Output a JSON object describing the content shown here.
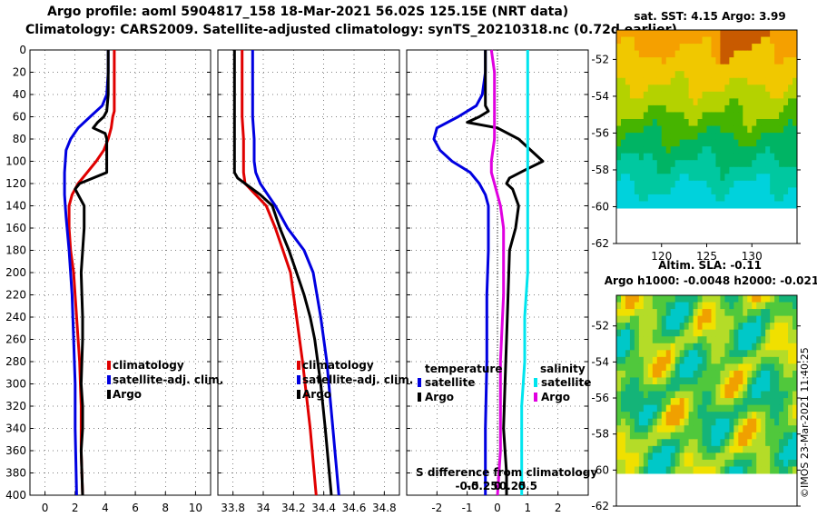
{
  "header": {
    "line1": "Argo profile: aoml 5904817_158 18-Mar-2021 56.02S 125.15E (NRT data)",
    "line2": "Climatology: CARS2009. Satellite-adjusted climatology: synTS_20210318.nc (0.72d earlier)"
  },
  "colors": {
    "climatology": "#e00000",
    "satellite": "#0000e0",
    "argo": "#000000",
    "sat_salinity": "#00e5ee",
    "argo_salinity": "#e000e0"
  },
  "chart_data": [
    {
      "type": "line",
      "panel": "temperature",
      "xlim": [
        -1,
        11
      ],
      "ylim": [
        400,
        0
      ],
      "xticks": [
        "0",
        "2",
        "4",
        "6",
        "8",
        "10"
      ],
      "yticks": [
        "0",
        "20",
        "40",
        "60",
        "80",
        "100",
        "120",
        "140",
        "160",
        "180",
        "200",
        "220",
        "240",
        "260",
        "280",
        "300",
        "320",
        "340",
        "360",
        "380",
        "400"
      ],
      "legend": [
        "climatology",
        "satellite-adj. clim.",
        "Argo"
      ],
      "series": [
        {
          "name": "climatology",
          "color_key": "climatology",
          "x": [
            4.6,
            4.6,
            4.6,
            4.6,
            4.5,
            4.4,
            4.2,
            3.9,
            3.4,
            2.8,
            2.2,
            1.8,
            1.6,
            1.6,
            1.7,
            1.9,
            2.1,
            2.3,
            2.4,
            2.4,
            2.5
          ],
          "y": [
            0,
            20,
            40,
            55,
            60,
            70,
            80,
            90,
            100,
            110,
            120,
            130,
            140,
            160,
            180,
            200,
            240,
            280,
            320,
            360,
            400
          ]
        },
        {
          "name": "satellite-adj. clim.",
          "color_key": "satellite",
          "x": [
            4.2,
            4.2,
            4.1,
            3.8,
            3.0,
            2.2,
            1.7,
            1.4,
            1.3,
            1.3,
            1.4,
            1.6,
            1.8,
            1.9,
            2.0,
            2.0,
            2.1
          ],
          "y": [
            0,
            20,
            40,
            50,
            60,
            70,
            80,
            90,
            110,
            130,
            150,
            180,
            220,
            260,
            300,
            340,
            400
          ]
        },
        {
          "name": "Argo",
          "color_key": "argo",
          "x": [
            4.2,
            4.2,
            4.2,
            4.1,
            3.9,
            3.5,
            3.2,
            4.0,
            4.1,
            4.1,
            3.2,
            2.3,
            2.0,
            2.2,
            2.6,
            2.6,
            2.4,
            2.5,
            2.5,
            2.4,
            2.5,
            2.5,
            2.4,
            2.5
          ],
          "y": [
            0,
            20,
            40,
            55,
            60,
            65,
            70,
            75,
            80,
            110,
            115,
            120,
            125,
            130,
            140,
            160,
            200,
            240,
            260,
            300,
            320,
            340,
            360,
            400
          ]
        }
      ]
    },
    {
      "type": "line",
      "panel": "salinity",
      "xlim": [
        33.7,
        34.9
      ],
      "ylim": [
        400,
        0
      ],
      "xticks": [
        "33.8",
        "34",
        "34.2",
        "34.4",
        "34.6",
        "34.8"
      ],
      "legend": [
        "climatology",
        "satellite-adj. clim.",
        "Argo"
      ],
      "series": [
        {
          "name": "climatology",
          "color_key": "climatology",
          "x": [
            33.86,
            33.86,
            33.86,
            33.86,
            33.87,
            33.87,
            33.87,
            33.88,
            33.95,
            34.02,
            34.08,
            34.13,
            34.18,
            34.22,
            34.26,
            34.31,
            34.35
          ],
          "y": [
            0,
            20,
            40,
            60,
            80,
            100,
            110,
            120,
            130,
            140,
            160,
            180,
            200,
            240,
            280,
            340,
            400
          ]
        },
        {
          "name": "satellite-adj. clim.",
          "color_key": "satellite",
          "x": [
            33.93,
            33.93,
            33.93,
            33.93,
            33.94,
            33.94,
            33.95,
            33.98,
            34.03,
            34.08,
            34.16,
            34.27,
            34.33,
            34.38,
            34.42,
            34.46,
            34.5
          ],
          "y": [
            0,
            20,
            40,
            60,
            80,
            100,
            110,
            120,
            130,
            140,
            160,
            180,
            200,
            240,
            280,
            340,
            400
          ]
        },
        {
          "name": "Argo",
          "color_key": "argo",
          "x": [
            33.81,
            33.81,
            33.81,
            33.81,
            33.81,
            33.81,
            33.81,
            33.83,
            33.88,
            33.98,
            34.06,
            34.11,
            34.17,
            34.22,
            34.27,
            34.31,
            34.34,
            34.38,
            34.41,
            34.45
          ],
          "y": [
            0,
            20,
            40,
            60,
            80,
            100,
            110,
            115,
            120,
            130,
            140,
            160,
            180,
            200,
            220,
            240,
            260,
            300,
            340,
            400
          ]
        }
      ]
    },
    {
      "type": "line",
      "panel": "difference-from-climatology",
      "xlim": [
        -3,
        3
      ],
      "ylim": [
        400,
        0
      ],
      "xticks": [
        "-2",
        "-1",
        "0",
        "1",
        "2"
      ],
      "secondary_xlabel": "S difference from climatology",
      "secondary_xticks": [
        "-0.5",
        "-0.25",
        "0",
        "0.25",
        "0.5"
      ],
      "legend_temperature": {
        "title": "temperature",
        "items": [
          "satellite",
          "Argo"
        ]
      },
      "legend_salinity": {
        "title": "salinity",
        "items": [
          "satellite",
          "Argo"
        ]
      },
      "series": [
        {
          "name": "temperature satellite",
          "color_key": "satellite",
          "x": [
            -0.4,
            -0.4,
            -0.5,
            -0.7,
            -1.3,
            -2.0,
            -2.1,
            -1.9,
            -1.5,
            -0.9,
            -0.6,
            -0.4,
            -0.3,
            -0.3,
            -0.3,
            -0.35,
            -0.35,
            -0.4,
            -0.4
          ],
          "y": [
            0,
            20,
            40,
            50,
            60,
            70,
            80,
            90,
            100,
            110,
            120,
            130,
            140,
            160,
            180,
            220,
            280,
            340,
            400
          ]
        },
        {
          "name": "temperature Argo",
          "color_key": "argo",
          "x": [
            -0.4,
            -0.4,
            -0.4,
            -0.4,
            -0.3,
            -0.6,
            -1.0,
            0.0,
            0.7,
            1.5,
            0.9,
            0.4,
            0.3,
            0.5,
            0.7,
            0.6,
            0.4,
            0.35,
            0.3,
            0.25,
            0.2,
            0.3,
            0.3
          ],
          "y": [
            0,
            20,
            40,
            50,
            55,
            60,
            65,
            70,
            80,
            100,
            108,
            115,
            120,
            125,
            140,
            160,
            180,
            220,
            260,
            300,
            340,
            380,
            400
          ]
        },
        {
          "name": "salinity satellite",
          "color_key": "sat_salinity",
          "x": [
            0.5,
            0.5,
            0.5,
            0.5,
            0.5,
            0.5,
            0.5,
            0.45,
            0.45,
            0.4,
            0.4,
            0.4,
            0.4
          ],
          "y": [
            0,
            40,
            80,
            120,
            160,
            180,
            200,
            240,
            280,
            320,
            360,
            380,
            400
          ]
        },
        {
          "name": "salinity Argo",
          "color_key": "argo_salinity",
          "x": [
            -0.1,
            -0.05,
            -0.05,
            -0.05,
            -0.05,
            -0.1,
            -0.1,
            -0.05,
            0.0,
            0.05,
            0.1,
            0.1,
            0.1,
            0.05,
            0.05,
            0.05,
            0.0
          ],
          "y": [
            0,
            20,
            40,
            60,
            80,
            100,
            110,
            120,
            130,
            140,
            160,
            180,
            220,
            280,
            320,
            360,
            400
          ]
        }
      ]
    }
  ],
  "maps": {
    "sst": {
      "title": "sat. SST: 4.15 Argo: 3.99",
      "yticks": [
        "-52",
        "-54",
        "-56",
        "-58",
        "-60",
        "-62"
      ],
      "xticks": [
        "120",
        "125",
        "130"
      ]
    },
    "sla": {
      "title_line1": "Altim. SLA: -0.11",
      "title_line2": "Argo h1000: -0.0048 h2000: -0.021",
      "yticks": [
        "-52",
        "-54",
        "-56",
        "-58",
        "-60",
        "-62"
      ]
    }
  },
  "stamp": "©IMOS 23-Mar-2021 11:40:25"
}
